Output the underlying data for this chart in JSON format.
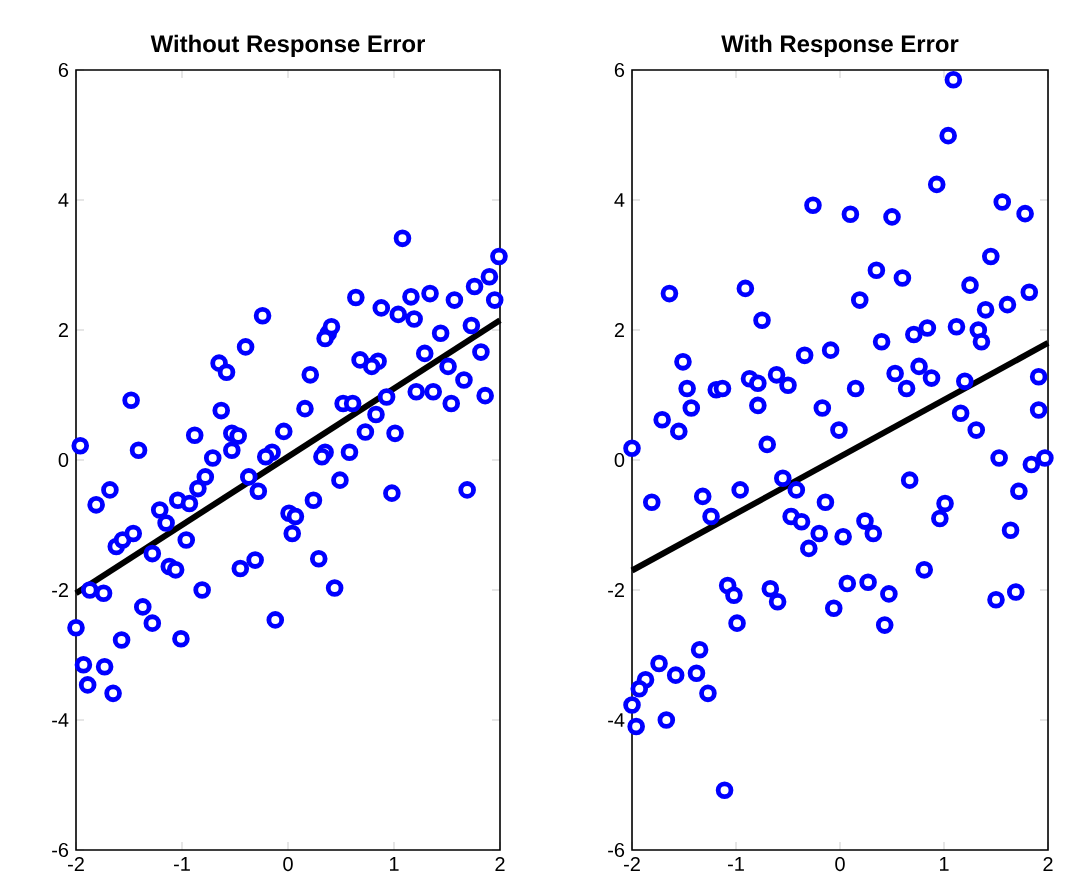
{
  "chart_data": [
    {
      "type": "scatter",
      "title": "Without Response Error",
      "xlim": [
        -2,
        2
      ],
      "ylim": [
        -6,
        6
      ],
      "xticks": [
        -2,
        -1,
        0,
        1,
        2
      ],
      "yticks": [
        -6,
        -4,
        -2,
        0,
        2,
        4,
        6
      ],
      "series": [
        {
          "color": "#0000ff",
          "marker": "circle",
          "x": [
            -1.96,
            -1.41,
            -1.48,
            -0.88,
            -0.71,
            -0.63,
            -0.65,
            -0.58,
            -0.53,
            -0.47,
            -0.53,
            -0.4,
            -0.24,
            -0.15,
            -0.04,
            0.16,
            0.21,
            0.35,
            0.58,
            0.38,
            0.41,
            0.35,
            0.52,
            0.61,
            0.73,
            0.68,
            0.85,
            0.79,
            0.93,
            0.83,
            1.01,
            0.64,
            0.88,
            1.08,
            1.04,
            1.16,
            1.19,
            1.34,
            1.29,
            1.21,
            1.37,
            1.44,
            1.51,
            1.54,
            1.66,
            1.57,
            1.76,
            1.73,
            1.82,
            1.86,
            1.9,
            1.95,
            1.99,
            -1.81,
            -1.68,
            -1.21,
            -1.15,
            -1.04,
            -0.93,
            -0.85,
            -0.78,
            -1.62,
            -1.56,
            -1.46,
            -1.28,
            -1.12,
            -1.06,
            -0.96,
            -1.87,
            -1.74,
            -2.0,
            -1.57,
            -1.37,
            -1.28,
            -1.01,
            -0.81,
            -1.93,
            -1.73,
            -1.89,
            -1.65,
            -0.37,
            -0.28,
            -0.21,
            0.01,
            0.07,
            0.04,
            0.24,
            0.32,
            0.49,
            0.98,
            1.69,
            -0.45,
            -0.31,
            -0.12,
            0.29,
            0.44
          ],
          "values": [
            0.22,
            0.15,
            0.92,
            0.38,
            0.03,
            0.76,
            1.49,
            1.35,
            0.41,
            0.37,
            0.15,
            1.74,
            2.22,
            0.12,
            0.44,
            0.79,
            1.31,
            0.12,
            0.12,
            1.95,
            2.05,
            1.87,
            0.87,
            0.87,
            0.43,
            1.54,
            1.52,
            1.44,
            0.97,
            0.7,
            0.41,
            2.5,
            2.34,
            3.41,
            2.24,
            2.51,
            2.17,
            2.56,
            1.64,
            1.05,
            1.05,
            1.95,
            1.44,
            0.87,
            1.23,
            2.46,
            2.67,
            2.07,
            1.66,
            0.99,
            2.82,
            2.46,
            3.13,
            -0.69,
            -0.46,
            -0.77,
            -0.97,
            -0.62,
            -0.67,
            -0.44,
            -0.26,
            -1.33,
            -1.23,
            -1.13,
            -1.44,
            -1.64,
            -1.69,
            -1.23,
            -2.0,
            -2.05,
            -2.58,
            -2.77,
            -2.26,
            -2.51,
            -2.75,
            -2.0,
            -3.15,
            -3.18,
            -3.46,
            -3.59,
            -0.26,
            -0.48,
            0.05,
            -0.82,
            -0.87,
            -1.13,
            -0.62,
            0.05,
            -0.31,
            -0.51,
            -0.46,
            -1.67,
            -1.54,
            -2.46,
            -1.52,
            -1.97
          ]
        },
        {
          "type": "line",
          "color": "#000000",
          "x": [
            -2,
            2
          ],
          "values": [
            -2.05,
            2.15
          ]
        }
      ]
    },
    {
      "type": "scatter",
      "title": "With Response Error",
      "xlim": [
        -2,
        2
      ],
      "ylim": [
        -6,
        6
      ],
      "xticks": [
        -2,
        -1,
        0,
        1,
        2
      ],
      "yticks": [
        -6,
        -4,
        -2,
        0,
        2,
        4,
        6
      ],
      "series": [
        {
          "color": "#0000ff",
          "marker": "circle",
          "x": [
            -2.0,
            -1.71,
            -1.55,
            -1.64,
            -1.51,
            -1.47,
            -1.43,
            -1.19,
            -1.13,
            -0.91,
            -0.75,
            -0.87,
            -0.79,
            -0.79,
            -0.61,
            -0.5,
            -0.7,
            -0.34,
            -0.26,
            -0.17,
            -0.09,
            -0.01,
            0.1,
            0.15,
            0.19,
            0.35,
            0.4,
            0.5,
            0.53,
            0.6,
            0.64,
            0.71,
            0.76,
            0.84,
            0.88,
            0.93,
            1.04,
            1.09,
            1.12,
            1.2,
            1.16,
            1.31,
            1.25,
            1.33,
            1.36,
            1.4,
            1.45,
            1.61,
            1.56,
            1.78,
            1.82,
            1.91,
            1.91,
            1.53,
            -1.81,
            -1.32,
            -1.24,
            -0.96,
            -0.55,
            -0.42,
            -0.47,
            -0.37,
            -0.2,
            -0.3,
            -0.14,
            0.03,
            0.24,
            0.32,
            0.67,
            1.01,
            0.96,
            0.81,
            1.84,
            1.97,
            1.72,
            1.64,
            1.5,
            1.69,
            -1.08,
            -1.02,
            -0.99,
            -0.67,
            -0.6,
            -0.06,
            0.07,
            0.27,
            0.47,
            0.43,
            -1.74,
            -1.87,
            -1.93,
            -2.0,
            -1.96,
            -1.67,
            -1.58,
            -1.38,
            -1.35,
            -1.27,
            -1.11
          ],
          "values": [
            0.18,
            0.62,
            0.44,
            2.56,
            1.51,
            1.1,
            0.8,
            1.08,
            1.1,
            2.64,
            2.15,
            1.25,
            1.18,
            0.84,
            1.31,
            1.15,
            0.24,
            1.61,
            3.92,
            0.8,
            1.69,
            0.46,
            3.78,
            1.1,
            2.46,
            2.92,
            1.82,
            3.74,
            1.33,
            2.8,
            1.1,
            1.93,
            1.44,
            2.03,
            1.26,
            4.24,
            4.99,
            5.85,
            2.05,
            1.21,
            0.72,
            0.46,
            2.69,
            2.0,
            1.82,
            2.31,
            3.13,
            2.39,
            3.97,
            3.79,
            2.58,
            1.28,
            0.77,
            0.03,
            -0.65,
            -0.56,
            -0.87,
            -0.46,
            -0.28,
            -0.46,
            -0.87,
            -0.95,
            -1.13,
            -1.36,
            -0.65,
            -1.18,
            -0.94,
            -1.13,
            -0.31,
            -0.67,
            -0.9,
            -1.69,
            -0.07,
            0.03,
            -0.48,
            -1.08,
            -2.15,
            -2.03,
            -1.93,
            -2.08,
            -2.51,
            -1.98,
            -2.18,
            -2.28,
            -1.9,
            -1.88,
            -2.06,
            -2.54,
            -3.13,
            -3.38,
            -3.52,
            -3.77,
            -4.1,
            -4.0,
            -3.31,
            -3.28,
            -2.92,
            -3.59,
            -5.08
          ]
        },
        {
          "type": "line",
          "color": "#000000",
          "x": [
            -2,
            2
          ],
          "values": [
            -1.7,
            1.8
          ]
        }
      ]
    }
  ]
}
